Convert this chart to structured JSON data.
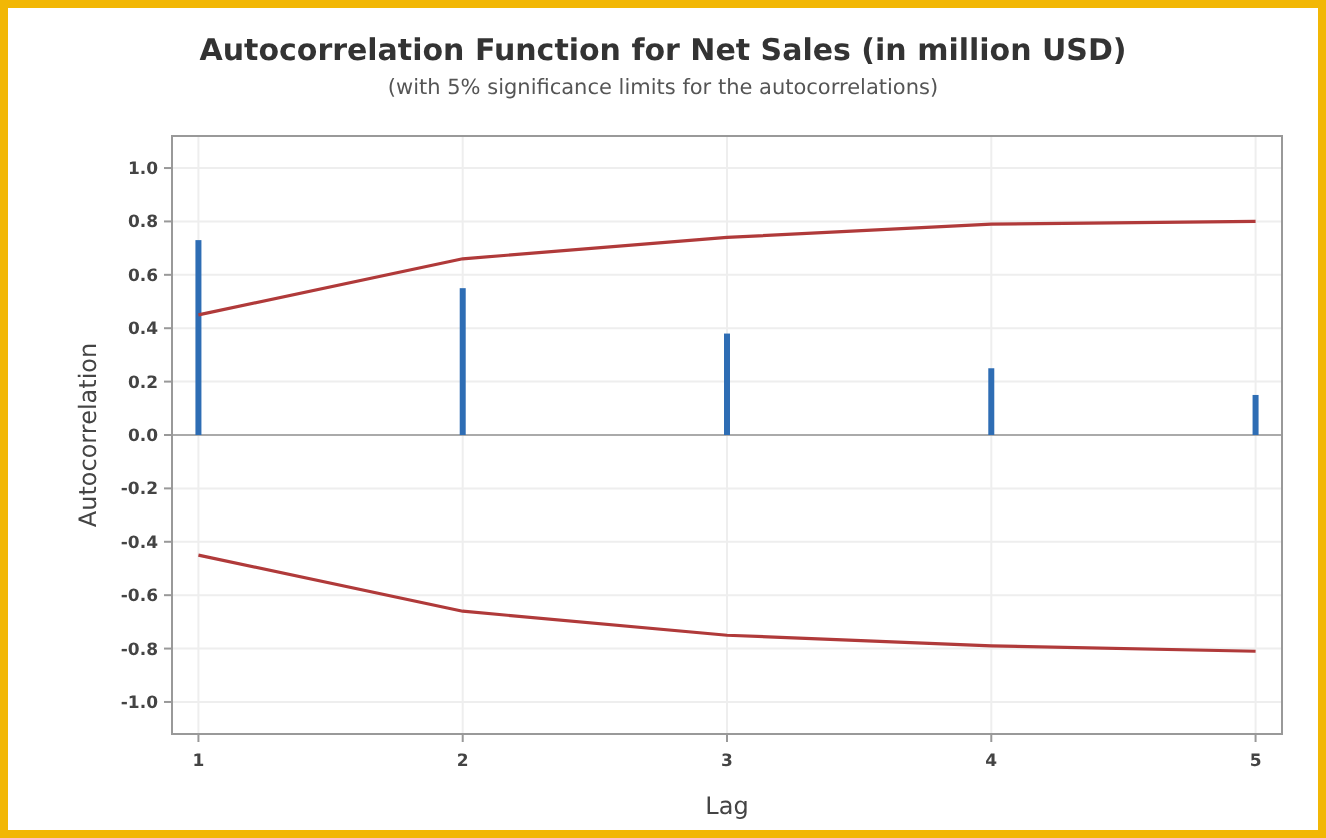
{
  "chart_data": {
    "type": "bar",
    "title": "Autocorrelation Function for Net Sales (in million USD)",
    "subtitle": "(with 5% significance limits for the autocorrelations)",
    "xlabel": "Lag",
    "ylabel": "Autocorrelation",
    "x": [
      1,
      2,
      3,
      4,
      5
    ],
    "series": [
      {
        "color": "#2e6db4",
        "values": [
          0.73,
          0.55,
          0.38,
          0.25,
          0.15
        ]
      },
      {
        "type": "line",
        "color": "#b03a3a",
        "values": [
          0.45,
          0.66,
          0.74,
          0.79,
          0.8
        ]
      },
      {
        "type": "line",
        "color": "#b03a3a",
        "values": [
          -0.45,
          -0.66,
          -0.75,
          -0.79,
          -0.81
        ]
      }
    ],
    "xlim": [
      0.9,
      5.1
    ],
    "xticks": [
      1,
      2,
      3,
      4,
      5
    ],
    "ylim": [
      -1.12,
      1.12
    ],
    "yticks": [
      {
        "value": -1,
        "label": "-1.0"
      },
      -0.8,
      -0.6,
      -0.4,
      -0.2,
      {
        "value": 0,
        "label": "0.0"
      },
      0.2,
      0.4,
      0.6,
      0.8,
      {
        "value": 1,
        "label": "1.0"
      }
    ],
    "grid": true
  }
}
